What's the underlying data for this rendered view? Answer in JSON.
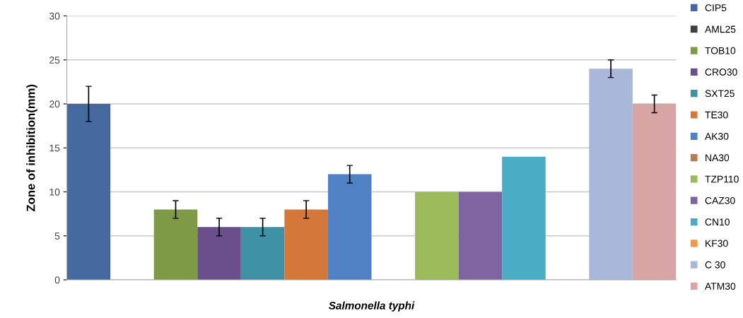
{
  "chart_data": {
    "type": "bar",
    "ylabel": "Zone of inhibition(mm)",
    "categories": [
      "Salmonella typhi"
    ],
    "series": [
      {
        "name": "CIP5",
        "color": "#43699e",
        "values": [
          20
        ],
        "errors": [
          2
        ]
      },
      {
        "name": "AML25",
        "color": "#3f3f3f",
        "values": [
          0
        ],
        "errors": [
          null
        ]
      },
      {
        "name": "TOB10",
        "color": "#7f9a44",
        "values": [
          8
        ],
        "errors": [
          1
        ]
      },
      {
        "name": "CRO30",
        "color": "#6a4f8c",
        "values": [
          6
        ],
        "errors": [
          1
        ]
      },
      {
        "name": "SXT25",
        "color": "#3f91a5",
        "values": [
          6
        ],
        "errors": [
          1
        ]
      },
      {
        "name": "TE30",
        "color": "#d4783a",
        "values": [
          8
        ],
        "errors": [
          1
        ]
      },
      {
        "name": "AK30",
        "color": "#4f81c4",
        "values": [
          12
        ],
        "errors": [
          1
        ]
      },
      {
        "name": "NA30",
        "color": "#b87a5a",
        "values": [
          0
        ],
        "errors": [
          null
        ]
      },
      {
        "name": "TZP110",
        "color": "#9bbb59",
        "values": [
          10
        ],
        "errors": [
          null
        ]
      },
      {
        "name": "CAZ30",
        "color": "#8064a2",
        "values": [
          10
        ],
        "errors": [
          null
        ]
      },
      {
        "name": "CN10",
        "color": "#4bacc6",
        "values": [
          14
        ],
        "errors": [
          null
        ]
      },
      {
        "name": "KF30",
        "color": "#f79646",
        "values": [
          0
        ],
        "errors": [
          null
        ]
      },
      {
        "name": "C 30",
        "color": "#a9b8d8",
        "values": [
          24
        ],
        "errors": [
          1
        ]
      },
      {
        "name": "ATM30",
        "color": "#d8a4a4",
        "values": [
          20
        ],
        "errors": [
          1
        ]
      }
    ],
    "ylim": [
      0,
      30
    ],
    "yticks": [
      0,
      5,
      10,
      15,
      20,
      25,
      30
    ],
    "grid": "y",
    "legend": "right"
  }
}
